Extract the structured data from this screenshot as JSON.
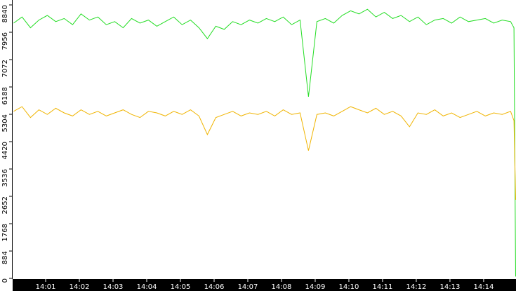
{
  "chart_data": {
    "type": "line",
    "x": [
      0.05,
      0.3,
      0.55,
      0.8,
      1.05,
      1.3,
      1.55,
      1.8,
      2.05,
      2.3,
      2.55,
      2.8,
      3.05,
      3.3,
      3.55,
      3.8,
      4.05,
      4.3,
      4.55,
      4.8,
      5.05,
      5.3,
      5.55,
      5.8,
      6.05,
      6.3,
      6.55,
      6.8,
      7.05,
      7.3,
      7.55,
      7.8,
      8.05,
      8.3,
      8.55,
      8.8,
      9.05,
      9.3,
      9.55,
      9.8,
      10.05,
      10.3,
      10.55,
      10.8,
      11.05,
      11.3,
      11.55,
      11.8,
      12.05,
      12.3,
      12.55,
      12.8,
      13.05,
      13.3,
      13.55,
      13.8,
      14.05,
      14.3,
      14.55,
      14.8,
      14.9,
      14.95
    ],
    "series": [
      {
        "color": "#22dd22",
        "values": [
          8250,
          8450,
          8100,
          8350,
          8500,
          8300,
          8400,
          8200,
          8550,
          8350,
          8450,
          8200,
          8300,
          8100,
          8400,
          8250,
          8350,
          8150,
          8300,
          8450,
          8200,
          8350,
          8100,
          7750,
          8150,
          8050,
          8300,
          8200,
          8350,
          8250,
          8400,
          8300,
          8450,
          8200,
          8350,
          5870,
          8300,
          8400,
          8250,
          8500,
          8650,
          8550,
          8700,
          8450,
          8600,
          8400,
          8500,
          8300,
          8450,
          8200,
          8350,
          8400,
          8250,
          8450,
          8300,
          8350,
          8400,
          8250,
          8350,
          8300,
          8100,
          60
        ]
      },
      {
        "color": "#f0b400",
        "values": [
          5400,
          5550,
          5200,
          5450,
          5300,
          5500,
          5350,
          5250,
          5450,
          5300,
          5400,
          5250,
          5350,
          5450,
          5300,
          5200,
          5400,
          5350,
          5250,
          5400,
          5300,
          5450,
          5250,
          4650,
          5200,
          5300,
          5400,
          5250,
          5350,
          5300,
          5400,
          5250,
          5450,
          5300,
          5350,
          4130,
          5300,
          5350,
          5250,
          5400,
          5550,
          5450,
          5350,
          5500,
          5300,
          5400,
          5250,
          4900,
          5350,
          5300,
          5450,
          5250,
          5350,
          5200,
          5300,
          5400,
          5250,
          5350,
          5300,
          5400,
          5100,
          2540
        ]
      }
    ],
    "xlim": [
      0.02,
      14.96
    ],
    "xticks": [
      {
        "value": 1,
        "label": "14:01"
      },
      {
        "value": 2,
        "label": "14:02"
      },
      {
        "value": 3,
        "label": "14:03"
      },
      {
        "value": 4,
        "label": "14:04"
      },
      {
        "value": 5,
        "label": "14:05"
      },
      {
        "value": 6,
        "label": "14:06"
      },
      {
        "value": 7,
        "label": "14:07"
      },
      {
        "value": 8,
        "label": "14:08"
      },
      {
        "value": 9,
        "label": "14:09"
      },
      {
        "value": 10,
        "label": "14:10"
      },
      {
        "value": 11,
        "label": "14:11"
      },
      {
        "value": 12,
        "label": "14:12"
      },
      {
        "value": 13,
        "label": "14:13"
      },
      {
        "value": 14,
        "label": "14:14"
      }
    ],
    "ylim": [
      0,
      8840
    ],
    "yticks": [
      0,
      884,
      1768,
      2652,
      3536,
      4420,
      5304,
      6188,
      7072,
      7956,
      8840
    ]
  }
}
